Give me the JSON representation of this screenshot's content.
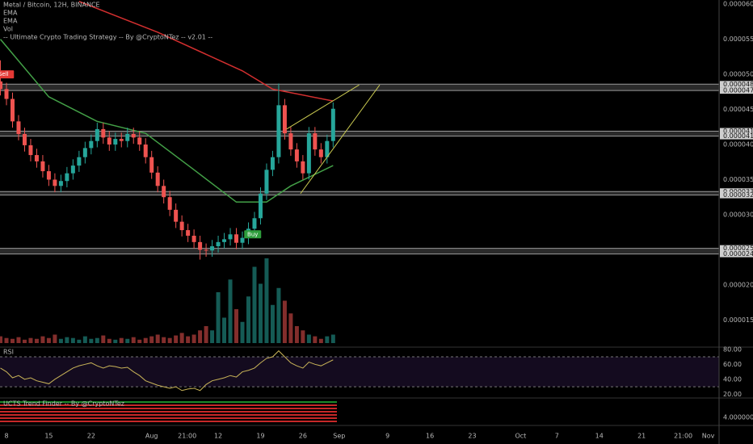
{
  "chart_data": {
    "type": "candlestick",
    "title": "Metal / Bitcoin, 12H, BINANCE",
    "indicators": [
      "EMA",
      "EMA",
      "Vol",
      "-- Ultimate Crypto Trading Strategy -- By @CryptoNTez -- v2.01 --"
    ],
    "x": [
      7,
      8,
      9,
      10,
      11,
      12,
      13,
      14,
      15,
      16,
      17,
      18,
      19,
      20,
      21,
      22,
      23,
      24,
      25,
      26,
      27,
      28,
      29,
      30,
      31,
      32,
      33,
      34,
      35,
      36,
      37,
      38,
      39,
      40,
      41,
      42,
      43,
      44,
      45,
      46,
      47,
      48,
      49,
      50,
      51,
      52,
      53,
      54,
      55,
      56,
      57,
      58,
      59,
      60,
      61,
      62
    ],
    "open": [
      4.9e-05,
      4.79e-05,
      4.65e-05,
      4.33e-05,
      4.15e-05,
      3.99e-05,
      3.85e-05,
      3.76e-05,
      3.62e-05,
      3.5e-05,
      3.41e-05,
      3.48e-05,
      3.59e-05,
      3.7e-05,
      3.82e-05,
      3.95e-05,
      4.05e-05,
      4.22e-05,
      4.1e-05,
      4e-05,
      4.08e-05,
      4.05e-05,
      4.15e-05,
      4.1e-05,
      4e-05,
      3.82e-05,
      3.6e-05,
      3.41e-05,
      3.25e-05,
      3.07e-05,
      2.9e-05,
      2.78e-05,
      2.7e-05,
      2.61e-05,
      2.5e-05,
      2.49e-05,
      2.55e-05,
      2.61e-05,
      2.65e-05,
      2.72e-05,
      2.6e-05,
      2.67e-05,
      2.8e-05,
      2.95e-05,
      3.3e-05,
      3.64e-05,
      3.82e-05,
      4.56e-05,
      4.16e-05,
      3.93e-05,
      3.76e-05,
      3.59e-05,
      4.16e-05,
      3.93e-05,
      3.82e-05,
      4.05e-05
    ],
    "high": [
      5.2e-05,
      4.88e-05,
      4.74e-05,
      4.42e-05,
      4.24e-05,
      4.08e-05,
      3.94e-05,
      3.85e-05,
      3.71e-05,
      3.59e-05,
      3.57e-05,
      3.68e-05,
      3.79e-05,
      3.91e-05,
      4.04e-05,
      4.14e-05,
      4.31e-05,
      4.31e-05,
      4.19e-05,
      4.17e-05,
      4.17e-05,
      4.24e-05,
      4.24e-05,
      4.19e-05,
      4.09e-05,
      3.91e-05,
      3.69e-05,
      3.5e-05,
      3.34e-05,
      3.16e-05,
      2.99e-05,
      2.87e-05,
      2.79e-05,
      2.7e-05,
      2.59e-05,
      2.64e-05,
      2.7e-05,
      2.74e-05,
      2.81e-05,
      2.81e-05,
      2.76e-05,
      2.89e-05,
      3.04e-05,
      3.39e-05,
      3.73e-05,
      3.91e-05,
      4.87e-05,
      4.65e-05,
      4.25e-05,
      4.02e-05,
      3.85e-05,
      4.25e-05,
      4.25e-05,
      4.02e-05,
      4.14e-05,
      4.6e-05
    ],
    "low": [
      4.7e-05,
      4.56e-05,
      4.24e-05,
      4.06e-05,
      3.9e-05,
      3.76e-05,
      3.67e-05,
      3.53e-05,
      3.41e-05,
      3.32e-05,
      3.32e-05,
      3.39e-05,
      3.5e-05,
      3.61e-05,
      3.73e-05,
      3.86e-05,
      3.96e-05,
      4.01e-05,
      3.91e-05,
      3.91e-05,
      3.96e-05,
      3.96e-05,
      4.01e-05,
      3.91e-05,
      3.73e-05,
      3.51e-05,
      3.32e-05,
      3.16e-05,
      2.98e-05,
      2.81e-05,
      2.69e-05,
      2.61e-05,
      2.52e-05,
      2.36e-05,
      2.4e-05,
      2.4e-05,
      2.46e-05,
      2.52e-05,
      2.56e-05,
      2.51e-05,
      2.51e-05,
      2.58e-05,
      2.71e-05,
      2.86e-05,
      3.21e-05,
      3.55e-05,
      3.73e-05,
      4.07e-05,
      3.84e-05,
      3.67e-05,
      3.5e-05,
      3.5e-05,
      3.84e-05,
      3.73e-05,
      3.73e-05,
      3.96e-05
    ],
    "close": [
      4.79e-05,
      4.65e-05,
      4.33e-05,
      4.15e-05,
      3.99e-05,
      3.85e-05,
      3.76e-05,
      3.62e-05,
      3.5e-05,
      3.41e-05,
      3.48e-05,
      3.59e-05,
      3.7e-05,
      3.82e-05,
      3.95e-05,
      4.05e-05,
      4.22e-05,
      4.1e-05,
      4e-05,
      4.08e-05,
      4.05e-05,
      4.15e-05,
      4.1e-05,
      4e-05,
      3.82e-05,
      3.6e-05,
      3.41e-05,
      3.25e-05,
      3.07e-05,
      2.9e-05,
      2.78e-05,
      2.7e-05,
      2.61e-05,
      2.5e-05,
      2.49e-05,
      2.55e-05,
      2.61e-05,
      2.65e-05,
      2.72e-05,
      2.6e-05,
      2.67e-05,
      2.8e-05,
      2.95e-05,
      3.3e-05,
      3.64e-05,
      3.82e-05,
      4.56e-05,
      4.16e-05,
      3.93e-05,
      3.76e-05,
      3.59e-05,
      4.16e-05,
      3.93e-05,
      3.82e-05,
      4.05e-05,
      4.51e-05
    ],
    "up_color": "#26a69a",
    "down_color": "#ef5350",
    "ema": [
      {
        "color": "#d32f2f",
        "x": [
          20,
          33,
          47,
          52,
          62
        ],
        "values": [
          6.04e-05,
          5.6e-05,
          5.05e-05,
          4.79e-05,
          4.62e-05
        ]
      },
      {
        "color": "#43a047",
        "x": [
          7,
          15,
          23,
          31,
          39,
          46,
          51,
          55,
          62
        ],
        "values": [
          5.5e-05,
          4.68e-05,
          4.33e-05,
          4.16e-05,
          3.64e-05,
          3.18e-05,
          3.18e-05,
          3.41e-05,
          3.7e-05
        ]
      }
    ],
    "trendlines": [
      {
        "color": "#c8c850",
        "x": [
          54.3,
          66.3
        ],
        "values": [
          4.22e-05,
          4.85e-05
        ]
      },
      {
        "color": "#c8c850",
        "x": [
          56.6,
          69.7
        ],
        "values": [
          3.3e-05,
          4.85e-05
        ]
      }
    ],
    "zones": [
      [
        {
          "value": 4.86e-05,
          "label": "0.00004860"
        },
        {
          "value": 4.77e-05,
          "label": "0.00004770"
        }
      ],
      [
        {
          "value": 4.19e-05,
          "label": "0.00004190"
        },
        {
          "value": 4.12e-05,
          "label": "0.00004120"
        }
      ],
      [
        {
          "value": 3.33e-05,
          "label": "0.00003330"
        },
        {
          "value": 3.28e-05,
          "label": "0.00003280"
        }
      ],
      [
        {
          "value": 2.52e-05,
          "label": "0.00002520"
        },
        {
          "value": 2.44e-05,
          "label": "0.00002440"
        }
      ]
    ],
    "signals": [
      {
        "text": "Sell",
        "x": 7.5,
        "value": 5e-05,
        "color": "#e53935"
      },
      {
        "text": "Buy",
        "x": 48.7,
        "value": 2.72e-05,
        "color": "#2e9e3c"
      }
    ],
    "volume": {
      "values": [
        8,
        6,
        5,
        7,
        4,
        6,
        5,
        8,
        6,
        10,
        5,
        7,
        6,
        4,
        8,
        5,
        6,
        9,
        5,
        4,
        6,
        5,
        7,
        4,
        6,
        8,
        10,
        7,
        6,
        9,
        12,
        8,
        10,
        15,
        20,
        15,
        60,
        30,
        75,
        40,
        25,
        55,
        90,
        70,
        100,
        45,
        65,
        50,
        35,
        20,
        15,
        10,
        8,
        5,
        8,
        10
      ],
      "ylim": [
        0,
        100
      ]
    },
    "xlim": [
      6.93,
      125.8
    ],
    "xticks": [
      {
        "value": 8,
        "label": "8"
      },
      {
        "value": 15,
        "label": "15"
      },
      {
        "value": 22,
        "label": "22"
      },
      {
        "value": 32,
        "label": "Aug"
      },
      {
        "value": 37.875,
        "label": "21:00"
      },
      {
        "value": 43,
        "label": "12"
      },
      {
        "value": 50,
        "label": "19"
      },
      {
        "value": 57,
        "label": "26"
      },
      {
        "value": 63,
        "label": "Sep"
      },
      {
        "value": 71,
        "label": "9"
      },
      {
        "value": 78,
        "label": "16"
      },
      {
        "value": 85,
        "label": "23"
      },
      {
        "value": 93,
        "label": "Oct"
      },
      {
        "value": 99,
        "label": "7"
      },
      {
        "value": 106,
        "label": "14"
      },
      {
        "value": 113,
        "label": "21"
      },
      {
        "value": 119.875,
        "label": "21:00"
      },
      {
        "value": 124,
        "label": "Nov"
      }
    ],
    "ylim": [
      1.17e-05,
      6.06e-05
    ],
    "yticks": [
      {
        "value": 6e-05,
        "label": "0.00006000"
      },
      {
        "value": 5.5e-05,
        "label": "0.00005500"
      },
      {
        "value": 5e-05,
        "label": "0.00005000"
      },
      {
        "value": 4.5e-05,
        "label": "0.00004500"
      },
      {
        "value": 4e-05,
        "label": "0.00004000"
      },
      {
        "value": 3.5e-05,
        "label": "0.00003500"
      },
      {
        "value": 3e-05,
        "label": "0.00003000"
      },
      {
        "value": 2e-05,
        "label": "0.00002000"
      },
      {
        "value": 1.5e-05,
        "label": "0.00001500"
      }
    ],
    "rsi": {
      "title": "RSI",
      "color": "#c9b458",
      "values": [
        55,
        50,
        42,
        45,
        40,
        42,
        38,
        36,
        34,
        40,
        45,
        50,
        55,
        58,
        60,
        62,
        58,
        55,
        58,
        57,
        55,
        56,
        50,
        45,
        38,
        35,
        32,
        30,
        28,
        30,
        25,
        27,
        28,
        25,
        33,
        38,
        40,
        42,
        45,
        43,
        50,
        52,
        55,
        62,
        68,
        70,
        78,
        70,
        62,
        58,
        55,
        63,
        60,
        58,
        62,
        66
      ],
      "ylim": [
        15,
        83
      ],
      "yticks": [
        {
          "value": 80,
          "label": "80.00"
        },
        {
          "value": 60,
          "label": "60.00"
        },
        {
          "value": 40,
          "label": "40.00"
        },
        {
          "value": 20,
          "label": "20.00"
        }
      ],
      "bands": [
        70,
        30
      ]
    },
    "ucts": {
      "title": "UCTS Trend Finder -- By @CryptoNTez",
      "ytick": {
        "value": 4,
        "label": "4.00000000"
      }
    }
  }
}
